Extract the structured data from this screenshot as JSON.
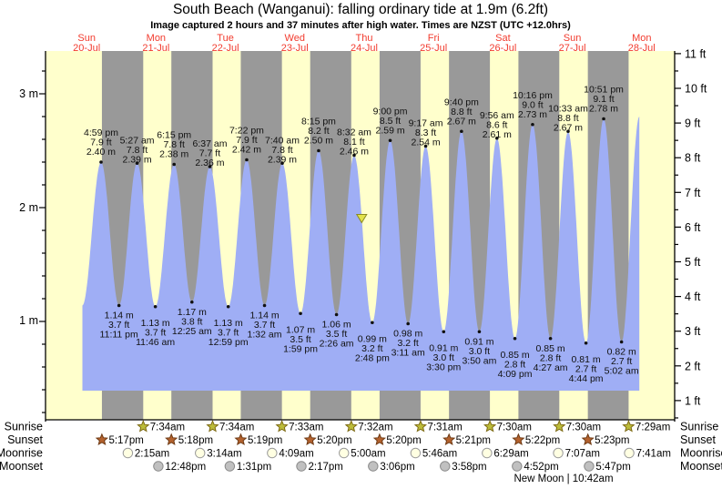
{
  "header": {
    "title": "South Beach (Wanganui): falling  ordinary tide at 1.9m (6.2ft)",
    "subtitle": "Image captured 2 hours and 37 minutes after high water. Times are NZST (UTC +12.0hrs)"
  },
  "days": [
    {
      "name": "Sun",
      "date": "20-Jul"
    },
    {
      "name": "Mon",
      "date": "21-Jul"
    },
    {
      "name": "Tue",
      "date": "22-Jul"
    },
    {
      "name": "Wed",
      "date": "23-Jul"
    },
    {
      "name": "Thu",
      "date": "24-Jul"
    },
    {
      "name": "Fri",
      "date": "25-Jul"
    },
    {
      "name": "Sat",
      "date": "26-Jul"
    },
    {
      "name": "Sun",
      "date": "27-Jul"
    },
    {
      "name": "Mon",
      "date": "28-Jul"
    }
  ],
  "axes": {
    "left_unit": "m",
    "left": [
      {
        "label": "3 m",
        "value_m": 3
      },
      {
        "label": "2 m",
        "value_m": 2
      },
      {
        "label": "1 m",
        "value_m": 1
      }
    ],
    "right_unit": "ft",
    "right": [
      {
        "label": "11 ft",
        "value_ft": 11
      },
      {
        "label": "10 ft",
        "value_ft": 10
      },
      {
        "label": "9 ft",
        "value_ft": 9
      },
      {
        "label": "8 ft",
        "value_ft": 8
      },
      {
        "label": "7 ft",
        "value_ft": 7
      },
      {
        "label": "6 ft",
        "value_ft": 6
      },
      {
        "label": "5 ft",
        "value_ft": 5
      },
      {
        "label": "4 ft",
        "value_ft": 4
      },
      {
        "label": "3 ft",
        "value_ft": 3
      },
      {
        "label": "2 ft",
        "value_ft": 2
      },
      {
        "label": "1 ft",
        "value_ft": 1
      }
    ]
  },
  "chart_data": {
    "type": "area",
    "title": "South Beach (Wanganui) tide curve, 20-Jul to 28-Jul",
    "x_unit": "hours since midnight of first day (Sun 20-Jul), NZST",
    "y_unit": "metres",
    "ylim_m": [
      0.14,
      3.38
    ],
    "current_tide_marker": {
      "t": 107.15,
      "height_m": 1.9,
      "note": "falling tide at 1.9m (6.2ft), 2h37m after high water"
    },
    "tide_events": [
      {
        "type": "low",
        "t": 10.52,
        "height_m": 1.14,
        "labeled": false
      },
      {
        "type": "high",
        "t": 16.983,
        "height_m": 2.4,
        "labeled": true,
        "time": "4:59 pm",
        "ft": "7.9 ft",
        "m": "2.40 m"
      },
      {
        "type": "low",
        "t": 23.183,
        "height_m": 1.14,
        "labeled": true,
        "time": "11:11 pm",
        "ft": "3.7 ft",
        "m": "1.14 m"
      },
      {
        "type": "high",
        "t": 29.45,
        "height_m": 2.39,
        "labeled": true,
        "time": "5:27 am",
        "ft": "7.8 ft",
        "m": "2.39 m"
      },
      {
        "type": "low",
        "t": 35.767,
        "height_m": 1.13,
        "labeled": true,
        "time": "11:46 am",
        "ft": "3.7 ft",
        "m": "1.13 m"
      },
      {
        "type": "high",
        "t": 42.25,
        "height_m": 2.38,
        "labeled": true,
        "time": "6:15 pm",
        "ft": "7.8 ft",
        "m": "2.38 m"
      },
      {
        "type": "low",
        "t": 48.417,
        "height_m": 1.17,
        "labeled": true,
        "time": "12:25 am",
        "ft": "3.8 ft",
        "m": "1.17 m"
      },
      {
        "type": "high",
        "t": 54.617,
        "height_m": 2.36,
        "labeled": true,
        "time": "6:37 am",
        "ft": "7.7 ft",
        "m": "2.36 m"
      },
      {
        "type": "low",
        "t": 60.983,
        "height_m": 1.13,
        "labeled": true,
        "time": "12:59 pm",
        "ft": "3.7 ft",
        "m": "1.13 m"
      },
      {
        "type": "high",
        "t": 67.367,
        "height_m": 2.42,
        "labeled": true,
        "time": "7:22 pm",
        "ft": "7.9 ft",
        "m": "2.42 m"
      },
      {
        "type": "low",
        "t": 73.533,
        "height_m": 1.14,
        "labeled": true,
        "time": "1:32 am",
        "ft": "3.7 ft",
        "m": "1.14 m"
      },
      {
        "type": "high",
        "t": 79.667,
        "height_m": 2.39,
        "labeled": true,
        "time": "7:40 am",
        "ft": "7.8 ft",
        "m": "2.39 m"
      },
      {
        "type": "low",
        "t": 85.983,
        "height_m": 1.07,
        "labeled": true,
        "time": "1:59 pm",
        "ft": "3.5 ft",
        "m": "1.07 m"
      },
      {
        "type": "high",
        "t": 92.25,
        "height_m": 2.5,
        "labeled": true,
        "time": "8:15 pm",
        "ft": "8.2 ft",
        "m": "2.50 m"
      },
      {
        "type": "low",
        "t": 98.433,
        "height_m": 1.06,
        "labeled": true,
        "time": "2:26 am",
        "ft": "3.5 ft",
        "m": "1.06 m"
      },
      {
        "type": "high",
        "t": 104.533,
        "height_m": 2.46,
        "labeled": true,
        "time": "8:32 am",
        "ft": "8.1 ft",
        "m": "2.46 m"
      },
      {
        "type": "low",
        "t": 110.8,
        "height_m": 0.99,
        "labeled": true,
        "time": "2:48 pm",
        "ft": "3.2 ft",
        "m": "0.99 m"
      },
      {
        "type": "high",
        "t": 117.0,
        "height_m": 2.59,
        "labeled": true,
        "time": "9:00 pm",
        "ft": "8.5 ft",
        "m": "2.59 m"
      },
      {
        "type": "low",
        "t": 123.183,
        "height_m": 0.98,
        "labeled": true,
        "time": "3:11 am",
        "ft": "3.2 ft",
        "m": "0.98 m"
      },
      {
        "type": "high",
        "t": 129.283,
        "height_m": 2.54,
        "labeled": true,
        "time": "9:17 am",
        "ft": "8.3 ft",
        "m": "2.54 m"
      },
      {
        "type": "low",
        "t": 135.5,
        "height_m": 0.91,
        "labeled": true,
        "time": "3:30 pm",
        "ft": "3.0 ft",
        "m": "0.91 m"
      },
      {
        "type": "high",
        "t": 141.667,
        "height_m": 2.67,
        "labeled": true,
        "time": "9:40 pm",
        "ft": "8.8 ft",
        "m": "2.67 m"
      },
      {
        "type": "low",
        "t": 147.833,
        "height_m": 0.91,
        "labeled": true,
        "time": "3:50 am",
        "ft": "3.0 ft",
        "m": "0.91 m"
      },
      {
        "type": "high",
        "t": 153.933,
        "height_m": 2.61,
        "labeled": true,
        "time": "9:56 am",
        "ft": "8.6 ft",
        "m": "2.61 m"
      },
      {
        "type": "low",
        "t": 160.15,
        "height_m": 0.85,
        "labeled": true,
        "time": "4:09 pm",
        "ft": "2.8 ft",
        "m": "0.85 m"
      },
      {
        "type": "high",
        "t": 166.267,
        "height_m": 2.73,
        "labeled": true,
        "time": "10:16 pm",
        "ft": "9.0 ft",
        "m": "2.73 m"
      },
      {
        "type": "low",
        "t": 172.45,
        "height_m": 0.85,
        "labeled": true,
        "time": "4:27 am",
        "ft": "2.8 ft",
        "m": "0.85 m"
      },
      {
        "type": "high",
        "t": 178.55,
        "height_m": 2.67,
        "labeled": true,
        "time": "10:33 am",
        "ft": "8.8 ft",
        "m": "2.67 m"
      },
      {
        "type": "low",
        "t": 184.733,
        "height_m": 0.81,
        "labeled": true,
        "time": "4:44 pm",
        "ft": "2.7 ft",
        "m": "0.81 m"
      },
      {
        "type": "high",
        "t": 190.85,
        "height_m": 2.78,
        "labeled": true,
        "time": "10:51 pm",
        "ft": "9.1 ft",
        "m": "2.78 m"
      },
      {
        "type": "low",
        "t": 197.033,
        "height_m": 0.82,
        "labeled": true,
        "time": "5:02 am",
        "ft": "2.7 ft",
        "m": "0.82 m"
      },
      {
        "type": "high",
        "t": 203.2,
        "height_m": 2.8,
        "labeled": false
      }
    ]
  },
  "astro": {
    "rows": [
      {
        "label": "Sunrise",
        "icon": "sunrise-star-icon",
        "events": [
          {
            "t": 31.567,
            "time": "7:34am"
          },
          {
            "t": 55.567,
            "time": "7:34am"
          },
          {
            "t": 79.55,
            "time": "7:33am"
          },
          {
            "t": 103.533,
            "time": "7:32am"
          },
          {
            "t": 127.517,
            "time": "7:31am"
          },
          {
            "t": 151.5,
            "time": "7:30am"
          },
          {
            "t": 175.5,
            "time": "7:30am"
          },
          {
            "t": 199.483,
            "time": "7:29am"
          }
        ]
      },
      {
        "label": "Sunset",
        "icon": "sunset-star-icon",
        "events": [
          {
            "t": 17.283,
            "time": "5:17pm"
          },
          {
            "t": 41.3,
            "time": "5:18pm"
          },
          {
            "t": 65.317,
            "time": "5:19pm"
          },
          {
            "t": 89.333,
            "time": "5:20pm"
          },
          {
            "t": 113.333,
            "time": "5:20pm"
          },
          {
            "t": 137.35,
            "time": "5:21pm"
          },
          {
            "t": 161.367,
            "time": "5:22pm"
          },
          {
            "t": 185.383,
            "time": "5:23pm"
          }
        ]
      },
      {
        "label": "Moonrise",
        "icon": "moonrise-circle-icon",
        "events": [
          {
            "t": 26.25,
            "time": "2:15am"
          },
          {
            "t": 51.233,
            "time": "3:14am"
          },
          {
            "t": 76.15,
            "time": "4:09am"
          },
          {
            "t": 101.0,
            "time": "5:00am"
          },
          {
            "t": 125.767,
            "time": "5:46am"
          },
          {
            "t": 150.483,
            "time": "6:29am"
          },
          {
            "t": 175.117,
            "time": "7:07am"
          },
          {
            "t": 199.683,
            "time": "7:41am"
          }
        ]
      },
      {
        "label": "Moonset",
        "icon": "moonset-circle-icon",
        "events": [
          {
            "t": 36.8,
            "time": "12:48pm"
          },
          {
            "t": 61.517,
            "time": "1:31pm"
          },
          {
            "t": 86.283,
            "time": "2:17pm"
          },
          {
            "t": 111.1,
            "time": "3:06pm"
          },
          {
            "t": 135.967,
            "time": "3:58pm"
          },
          {
            "t": 160.867,
            "time": "4:52pm"
          },
          {
            "t": 185.783,
            "time": "5:47pm"
          }
        ]
      }
    ],
    "footnote": "New Moon | 10:42am"
  },
  "colors": {
    "day_band": "#ffffcc",
    "night_band": "#999999",
    "tide_fill": "#9faef5",
    "date_red": "#f23b2e",
    "sunrise_star": "#bcbc3a",
    "sunrise_star_edge": "#7d6a14",
    "sunset_star": "#b4622e",
    "sunset_star_edge": "#6e3a14",
    "moonrise_circle": "#ffffe2",
    "moonrise_circle_edge": "#9a9a9a",
    "moonset_circle": "#c0c0c0",
    "moonset_circle_edge": "#8a8a8a",
    "marker_yellow": "#e2e24a",
    "marker_edge": "#8a8a20",
    "axis_black": "#000000"
  }
}
